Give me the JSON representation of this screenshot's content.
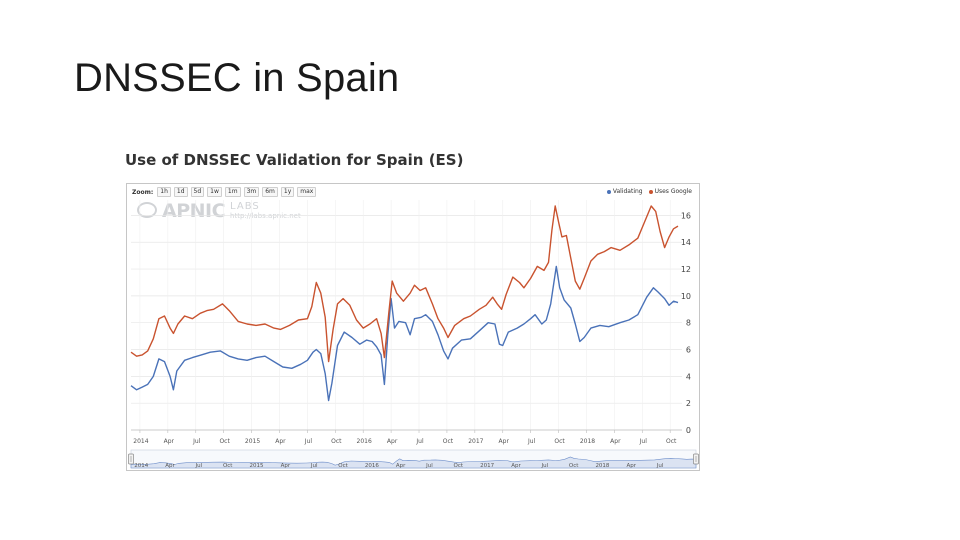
{
  "slide": {
    "title": "DNSSEC in Spain"
  },
  "chart_panel": {
    "title": "Use of DNSSEC Validation for Spain (ES)",
    "zoom_label": "Zoom:",
    "zoom_buttons": [
      "1h",
      "1d",
      "5d",
      "1w",
      "1m",
      "3m",
      "6m",
      "1y",
      "max"
    ],
    "watermark": {
      "brand": "APNIC",
      "labs": "LABS",
      "url": "http://labs.apnic.net"
    }
  },
  "colors": {
    "validating": "#4a72b8",
    "uses_google": "#c9532f",
    "grid": "#e6e6e6",
    "navigator_fill": "#dbe3f2"
  },
  "chart_data": {
    "type": "line",
    "title": "Use of DNSSEC Validation for Spain (ES)",
    "xlabel": "",
    "ylabel": "",
    "ylim": [
      0,
      17
    ],
    "y_ticks": [
      0,
      2,
      4,
      6,
      8,
      10,
      12,
      14,
      16
    ],
    "y_axis_side": "right",
    "grid": true,
    "legend_position": "top-right",
    "x_range": [
      2013.92,
      2018.82
    ],
    "x_ticks": [
      {
        "x": 2014.0,
        "label": "2014"
      },
      {
        "x": 2014.25,
        "label": "Apr"
      },
      {
        "x": 2014.5,
        "label": "Jul"
      },
      {
        "x": 2014.75,
        "label": "Oct"
      },
      {
        "x": 2015.0,
        "label": "2015"
      },
      {
        "x": 2015.25,
        "label": "Apr"
      },
      {
        "x": 2015.5,
        "label": "Jul"
      },
      {
        "x": 2015.75,
        "label": "Oct"
      },
      {
        "x": 2016.0,
        "label": "2016"
      },
      {
        "x": 2016.25,
        "label": "Apr"
      },
      {
        "x": 2016.5,
        "label": "Jul"
      },
      {
        "x": 2016.75,
        "label": "Oct"
      },
      {
        "x": 2017.0,
        "label": "2017"
      },
      {
        "x": 2017.25,
        "label": "Apr"
      },
      {
        "x": 2017.5,
        "label": "Jul"
      },
      {
        "x": 2017.75,
        "label": "Oct"
      },
      {
        "x": 2018.0,
        "label": "2018"
      },
      {
        "x": 2018.25,
        "label": "Apr"
      },
      {
        "x": 2018.5,
        "label": "Jul"
      },
      {
        "x": 2018.75,
        "label": "Oct"
      }
    ],
    "navigator_ticks": [
      {
        "x": 2014.0,
        "label": "2014"
      },
      {
        "x": 2014.25,
        "label": "Apr"
      },
      {
        "x": 2014.5,
        "label": "Jul"
      },
      {
        "x": 2014.75,
        "label": "Oct"
      },
      {
        "x": 2015.0,
        "label": "2015"
      },
      {
        "x": 2015.25,
        "label": "Apr"
      },
      {
        "x": 2015.5,
        "label": "Jul"
      },
      {
        "x": 2015.75,
        "label": "Oct"
      },
      {
        "x": 2016.0,
        "label": "2016"
      },
      {
        "x": 2016.25,
        "label": "Apr"
      },
      {
        "x": 2016.5,
        "label": "Jul"
      },
      {
        "x": 2016.75,
        "label": "Oct"
      },
      {
        "x": 2017.0,
        "label": "2017"
      },
      {
        "x": 2017.25,
        "label": "Apr"
      },
      {
        "x": 2017.5,
        "label": "Jul"
      },
      {
        "x": 2017.75,
        "label": "Oct"
      },
      {
        "x": 2018.0,
        "label": "2018"
      },
      {
        "x": 2018.25,
        "label": "Apr"
      },
      {
        "x": 2018.5,
        "label": "Jul"
      }
    ],
    "series": [
      {
        "name": "Validating",
        "color": "#4a72b8",
        "points": [
          [
            2013.92,
            3.3
          ],
          [
            2013.97,
            3.0
          ],
          [
            2014.02,
            3.2
          ],
          [
            2014.07,
            3.4
          ],
          [
            2014.12,
            4.0
          ],
          [
            2014.17,
            5.3
          ],
          [
            2014.22,
            5.1
          ],
          [
            2014.27,
            4.0
          ],
          [
            2014.3,
            3.0
          ],
          [
            2014.33,
            4.4
          ],
          [
            2014.4,
            5.2
          ],
          [
            2014.47,
            5.4
          ],
          [
            2014.55,
            5.6
          ],
          [
            2014.63,
            5.8
          ],
          [
            2014.72,
            5.9
          ],
          [
            2014.8,
            5.5
          ],
          [
            2014.88,
            5.3
          ],
          [
            2014.96,
            5.2
          ],
          [
            2015.04,
            5.4
          ],
          [
            2015.12,
            5.5
          ],
          [
            2015.2,
            5.1
          ],
          [
            2015.28,
            4.7
          ],
          [
            2015.36,
            4.6
          ],
          [
            2015.44,
            4.9
          ],
          [
            2015.5,
            5.2
          ],
          [
            2015.55,
            5.8
          ],
          [
            2015.58,
            6.0
          ],
          [
            2015.62,
            5.7
          ],
          [
            2015.66,
            4.2
          ],
          [
            2015.69,
            2.2
          ],
          [
            2015.72,
            3.5
          ],
          [
            2015.77,
            6.3
          ],
          [
            2015.83,
            7.3
          ],
          [
            2015.9,
            6.9
          ],
          [
            2015.97,
            6.4
          ],
          [
            2016.03,
            6.7
          ],
          [
            2016.08,
            6.6
          ],
          [
            2016.12,
            6.2
          ],
          [
            2016.16,
            5.6
          ],
          [
            2016.19,
            3.4
          ],
          [
            2016.22,
            7.1
          ],
          [
            2016.25,
            9.8
          ],
          [
            2016.28,
            7.6
          ],
          [
            2016.32,
            8.1
          ],
          [
            2016.38,
            8.0
          ],
          [
            2016.42,
            7.1
          ],
          [
            2016.46,
            8.3
          ],
          [
            2016.52,
            8.4
          ],
          [
            2016.56,
            8.6
          ],
          [
            2016.62,
            8.1
          ],
          [
            2016.67,
            7.1
          ],
          [
            2016.72,
            5.9
          ],
          [
            2016.76,
            5.3
          ],
          [
            2016.8,
            6.1
          ],
          [
            2016.88,
            6.7
          ],
          [
            2016.96,
            6.8
          ],
          [
            2017.04,
            7.4
          ],
          [
            2017.12,
            8.0
          ],
          [
            2017.18,
            7.9
          ],
          [
            2017.22,
            6.4
          ],
          [
            2017.25,
            6.3
          ],
          [
            2017.3,
            7.3
          ],
          [
            2017.38,
            7.6
          ],
          [
            2017.44,
            7.9
          ],
          [
            2017.5,
            8.3
          ],
          [
            2017.54,
            8.6
          ],
          [
            2017.6,
            7.9
          ],
          [
            2017.64,
            8.2
          ],
          [
            2017.68,
            9.4
          ],
          [
            2017.73,
            12.2
          ],
          [
            2017.76,
            10.6
          ],
          [
            2017.8,
            9.7
          ],
          [
            2017.86,
            9.1
          ],
          [
            2017.9,
            7.9
          ],
          [
            2017.94,
            6.6
          ],
          [
            2017.98,
            6.9
          ],
          [
            2018.04,
            7.6
          ],
          [
            2018.12,
            7.8
          ],
          [
            2018.2,
            7.7
          ],
          [
            2018.3,
            8.0
          ],
          [
            2018.38,
            8.2
          ],
          [
            2018.46,
            8.6
          ],
          [
            2018.54,
            9.9
          ],
          [
            2018.6,
            10.6
          ],
          [
            2018.64,
            10.3
          ],
          [
            2018.7,
            9.8
          ],
          [
            2018.74,
            9.3
          ],
          [
            2018.78,
            9.6
          ],
          [
            2018.82,
            9.5
          ]
        ]
      },
      {
        "name": "Uses Google",
        "color": "#c9532f",
        "points": [
          [
            2013.92,
            5.8
          ],
          [
            2013.97,
            5.5
          ],
          [
            2014.02,
            5.6
          ],
          [
            2014.07,
            5.9
          ],
          [
            2014.12,
            6.8
          ],
          [
            2014.17,
            8.3
          ],
          [
            2014.22,
            8.5
          ],
          [
            2014.27,
            7.6
          ],
          [
            2014.3,
            7.2
          ],
          [
            2014.34,
            7.9
          ],
          [
            2014.4,
            8.5
          ],
          [
            2014.47,
            8.3
          ],
          [
            2014.54,
            8.7
          ],
          [
            2014.6,
            8.9
          ],
          [
            2014.66,
            9.0
          ],
          [
            2014.74,
            9.4
          ],
          [
            2014.8,
            8.9
          ],
          [
            2014.88,
            8.1
          ],
          [
            2014.96,
            7.9
          ],
          [
            2015.04,
            7.8
          ],
          [
            2015.12,
            7.9
          ],
          [
            2015.2,
            7.6
          ],
          [
            2015.26,
            7.5
          ],
          [
            2015.34,
            7.8
          ],
          [
            2015.42,
            8.2
          ],
          [
            2015.5,
            8.3
          ],
          [
            2015.54,
            9.2
          ],
          [
            2015.58,
            11.0
          ],
          [
            2015.62,
            10.2
          ],
          [
            2015.66,
            8.4
          ],
          [
            2015.69,
            5.1
          ],
          [
            2015.73,
            7.5
          ],
          [
            2015.77,
            9.4
          ],
          [
            2015.82,
            9.8
          ],
          [
            2015.88,
            9.3
          ],
          [
            2015.94,
            8.2
          ],
          [
            2016.0,
            7.6
          ],
          [
            2016.06,
            7.9
          ],
          [
            2016.12,
            8.3
          ],
          [
            2016.16,
            7.2
          ],
          [
            2016.19,
            5.4
          ],
          [
            2016.23,
            8.8
          ],
          [
            2016.26,
            11.1
          ],
          [
            2016.3,
            10.2
          ],
          [
            2016.36,
            9.6
          ],
          [
            2016.42,
            10.2
          ],
          [
            2016.46,
            10.8
          ],
          [
            2016.51,
            10.4
          ],
          [
            2016.56,
            10.6
          ],
          [
            2016.62,
            9.4
          ],
          [
            2016.67,
            8.3
          ],
          [
            2016.72,
            7.6
          ],
          [
            2016.76,
            6.9
          ],
          [
            2016.82,
            7.8
          ],
          [
            2016.9,
            8.3
          ],
          [
            2016.96,
            8.5
          ],
          [
            2017.04,
            9.0
          ],
          [
            2017.1,
            9.3
          ],
          [
            2017.16,
            9.9
          ],
          [
            2017.2,
            9.4
          ],
          [
            2017.24,
            9.0
          ],
          [
            2017.28,
            10.1
          ],
          [
            2017.34,
            11.4
          ],
          [
            2017.4,
            11.0
          ],
          [
            2017.44,
            10.6
          ],
          [
            2017.5,
            11.3
          ],
          [
            2017.56,
            12.2
          ],
          [
            2017.62,
            11.9
          ],
          [
            2017.66,
            12.5
          ],
          [
            2017.69,
            14.9
          ],
          [
            2017.72,
            16.7
          ],
          [
            2017.75,
            15.5
          ],
          [
            2017.78,
            14.4
          ],
          [
            2017.82,
            14.5
          ],
          [
            2017.86,
            12.8
          ],
          [
            2017.9,
            11.1
          ],
          [
            2017.94,
            10.5
          ],
          [
            2017.98,
            11.3
          ],
          [
            2018.04,
            12.6
          ],
          [
            2018.1,
            13.1
          ],
          [
            2018.16,
            13.3
          ],
          [
            2018.22,
            13.6
          ],
          [
            2018.3,
            13.4
          ],
          [
            2018.38,
            13.8
          ],
          [
            2018.46,
            14.3
          ],
          [
            2018.52,
            15.5
          ],
          [
            2018.58,
            16.7
          ],
          [
            2018.62,
            16.3
          ],
          [
            2018.66,
            14.8
          ],
          [
            2018.7,
            13.6
          ],
          [
            2018.74,
            14.4
          ],
          [
            2018.78,
            15.0
          ],
          [
            2018.82,
            15.2
          ]
        ]
      }
    ]
  }
}
